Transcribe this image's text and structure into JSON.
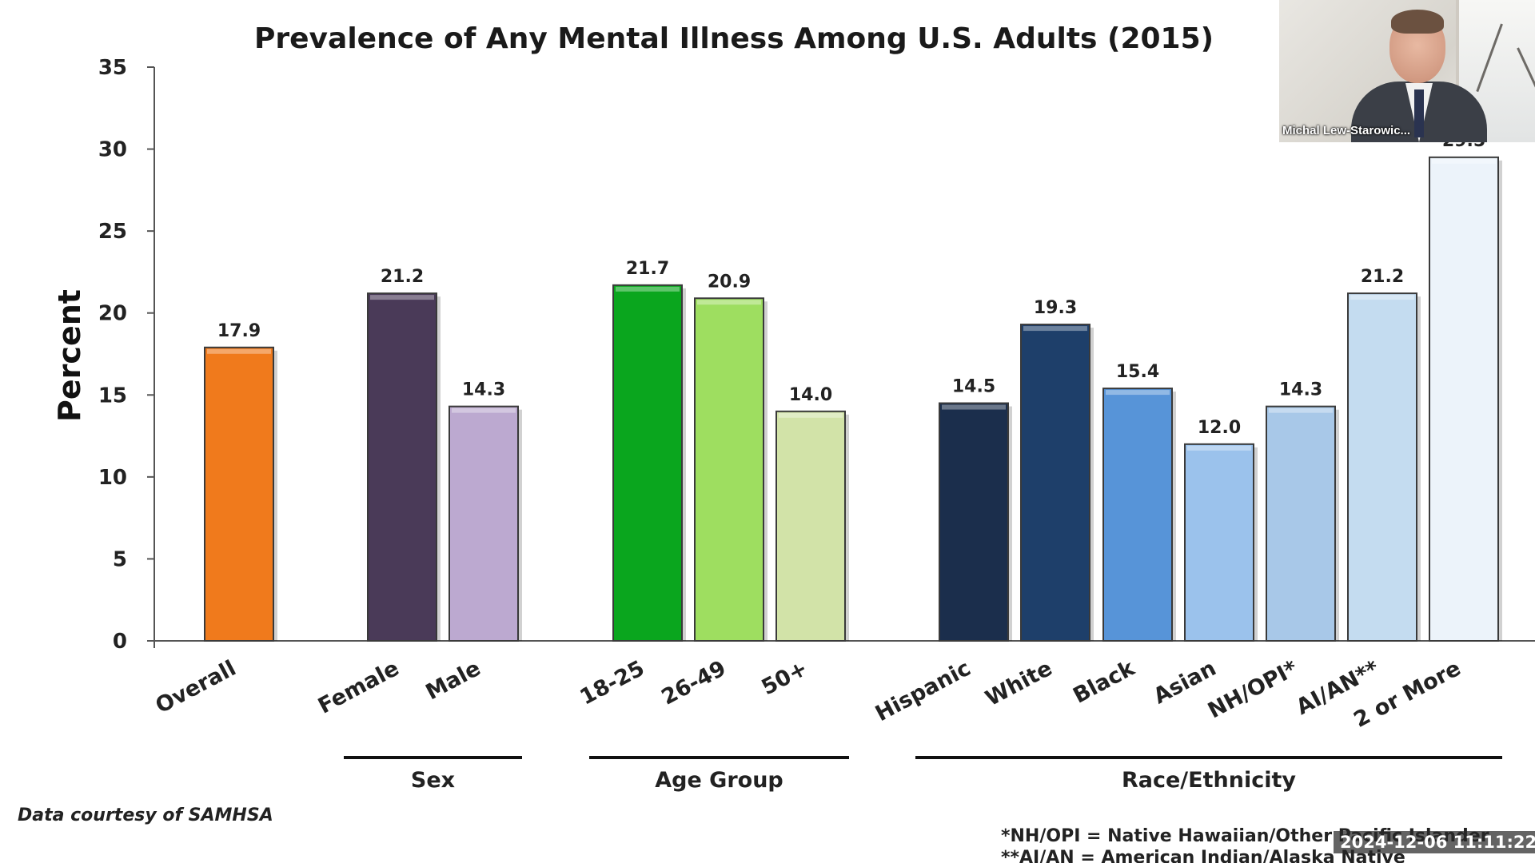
{
  "chart_data": {
    "type": "bar",
    "title": "Prevalence of Any Mental Illness Among U.S. Adults (2015)",
    "ylabel": "Percent",
    "ylim": [
      0,
      35
    ],
    "yticks": [
      0,
      5,
      10,
      15,
      20,
      25,
      30,
      35
    ],
    "grid": false,
    "categories": [
      "Overall",
      "Female",
      "Male",
      "18-25",
      "26-49",
      "50+",
      "Hispanic",
      "White",
      "Black",
      "Asian",
      "NH/OPI*",
      "AI/AN**",
      "2 or More"
    ],
    "values": [
      17.9,
      21.2,
      14.3,
      21.7,
      20.9,
      14.0,
      14.5,
      19.3,
      15.4,
      12.0,
      14.3,
      21.2,
      29.5
    ],
    "value_labels": [
      "17.9",
      "21.2",
      "14.3",
      "21.7",
      "20.9",
      "14.0",
      "14.5",
      "19.3",
      "15.4",
      "12.0",
      "14.3",
      "21.2",
      "29.5"
    ],
    "bar_colors": [
      "#f07a1c",
      "#4a3a58",
      "#bca9d0",
      "#0aa61e",
      "#9ede60",
      "#d2e3a8",
      "#1b2e4c",
      "#1e3f6a",
      "#5794d8",
      "#9bc2ec",
      "#a8c8e8",
      "#c4dcf0",
      "#ecf3fa"
    ],
    "groups": [
      {
        "label": "Sex",
        "first": 1,
        "last": 2
      },
      {
        "label": "Age Group",
        "first": 3,
        "last": 5
      },
      {
        "label": "Race/Ethnicity",
        "first": 6,
        "last": 12
      }
    ]
  },
  "credit": "Data courtesy of SAMHSA",
  "footnotes": [
    "*NH/OPI = Native Hawaiian/Other Pacific Islander",
    "**AI/AN = American Indian/Alaska Native"
  ],
  "video": {
    "participant_name": "Michal Lew-Starowic..."
  },
  "timestamp": "2024-12-06  11:11:22"
}
